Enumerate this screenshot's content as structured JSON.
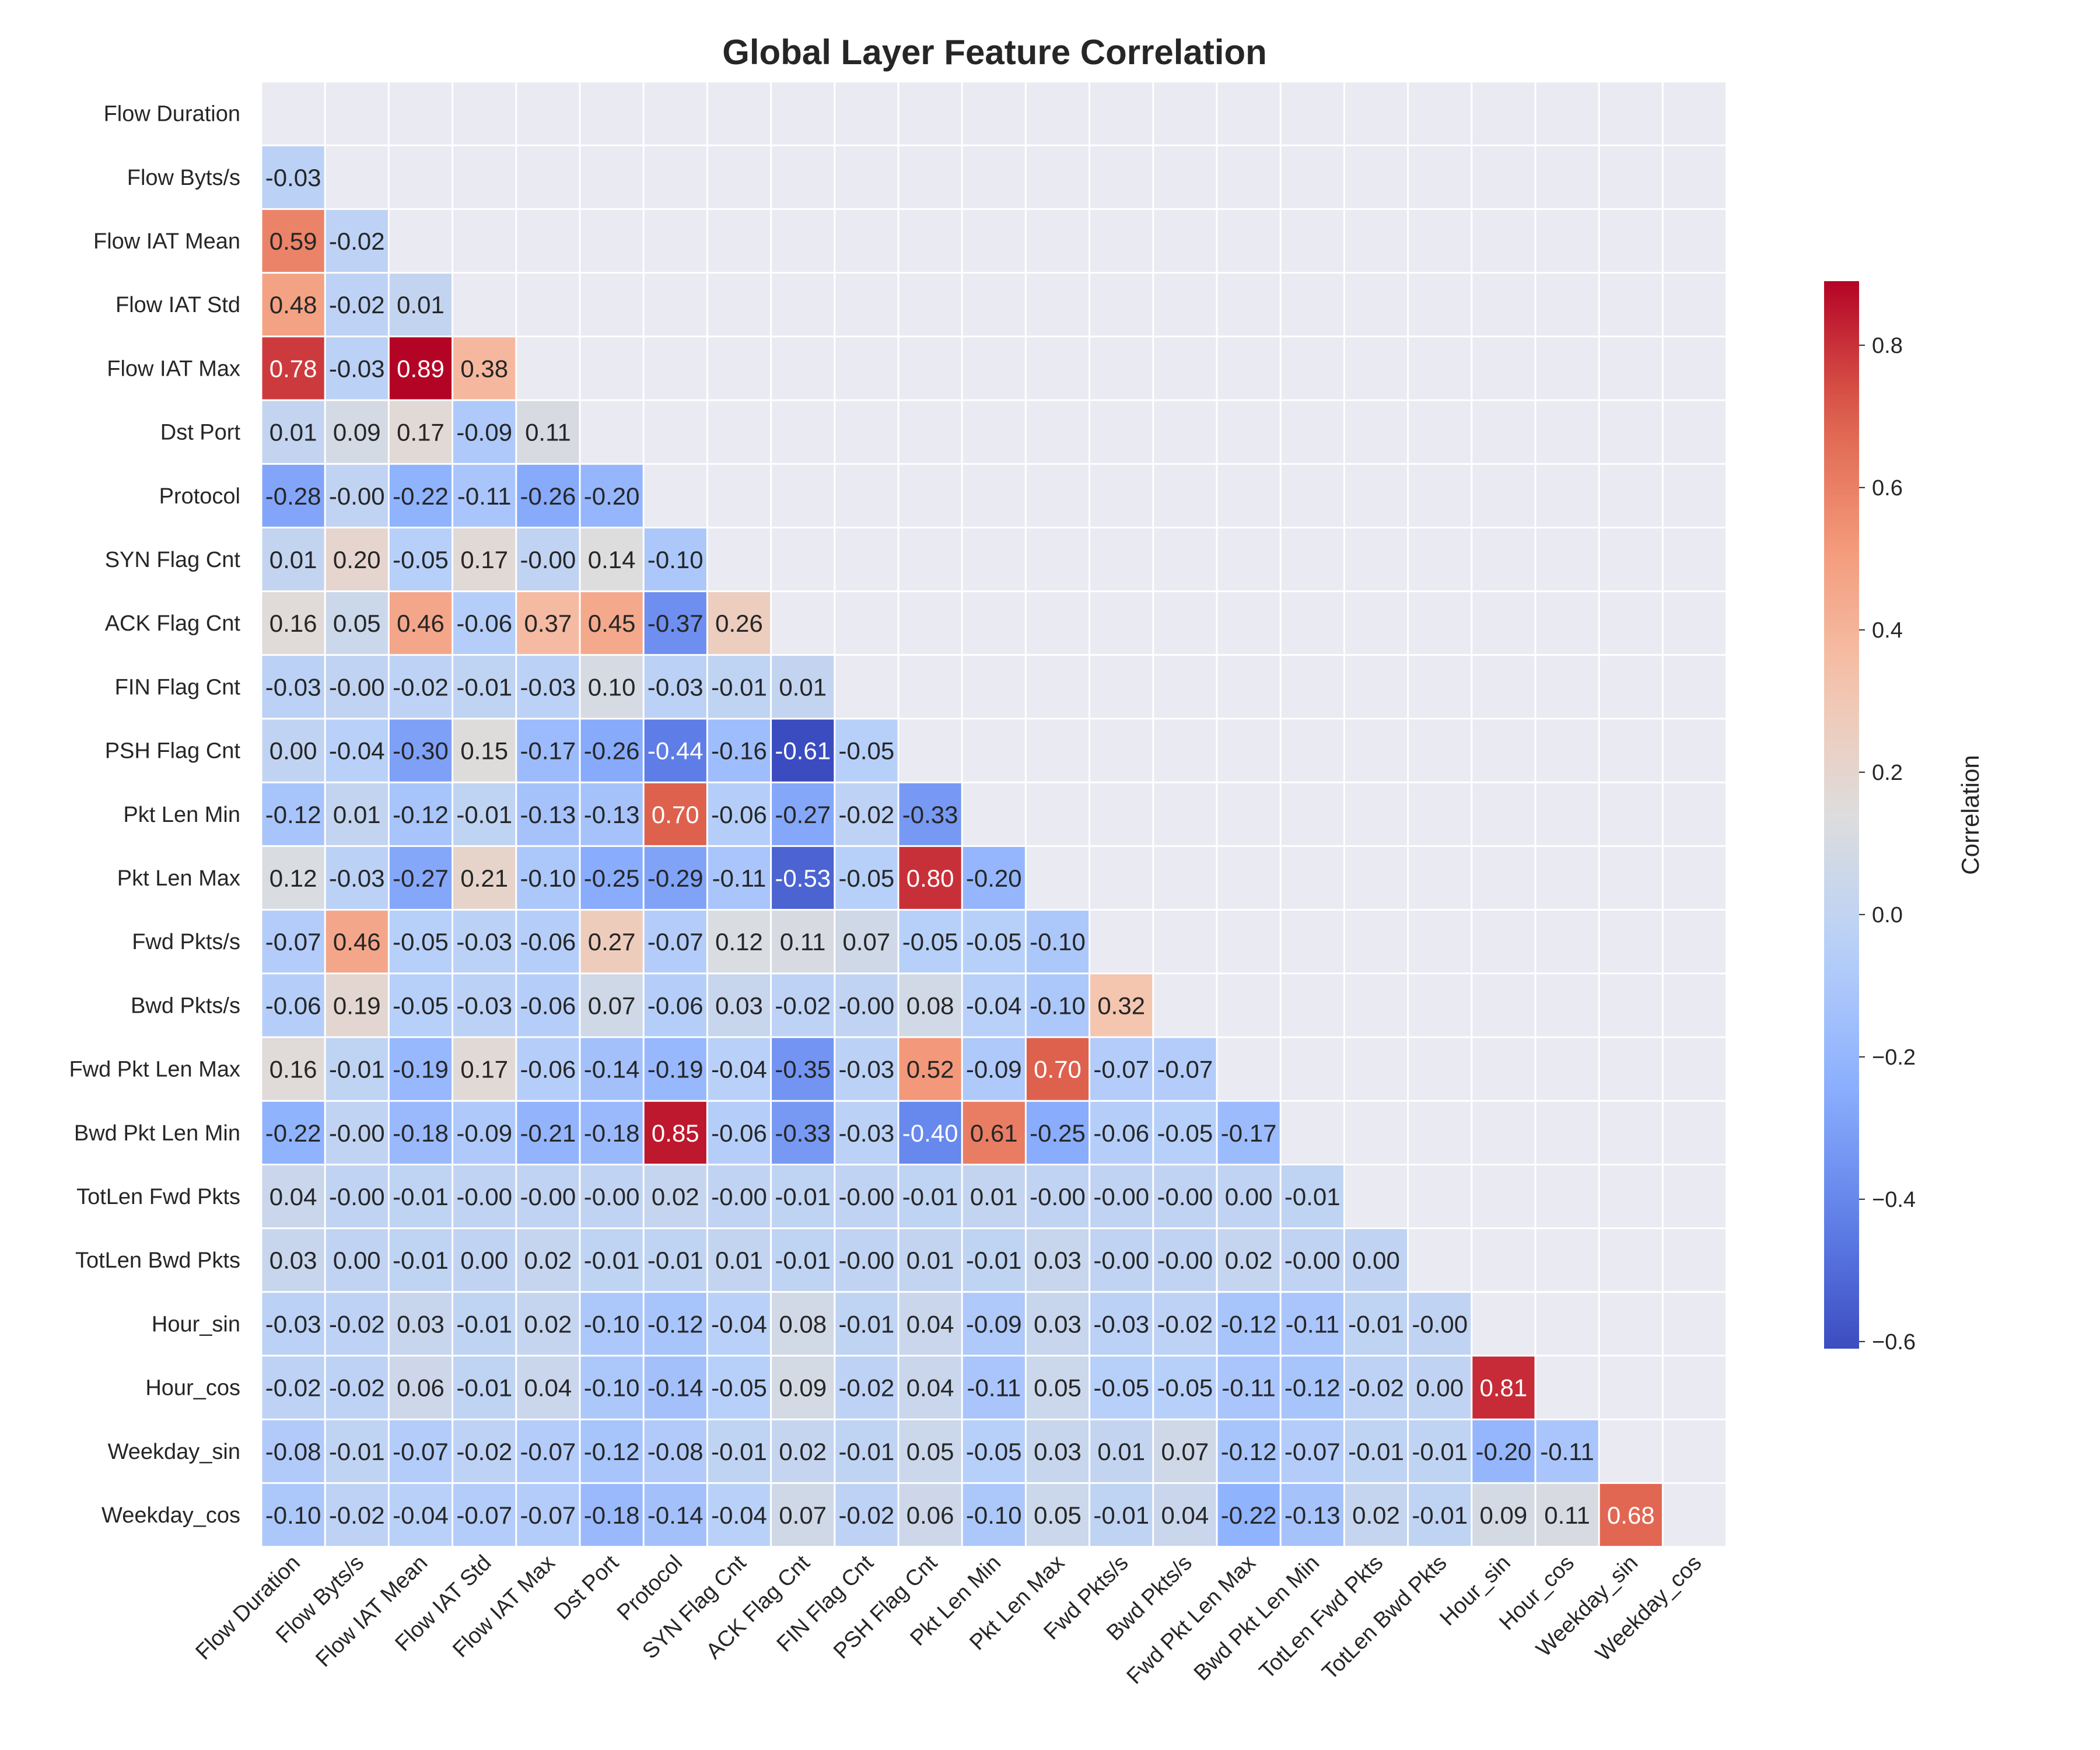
{
  "chart_data": {
    "type": "heatmap",
    "title": "Global Layer Feature Correlation",
    "labels": [
      "Flow Duration",
      "Flow Byts/s",
      "Flow IAT Mean",
      "Flow IAT Std",
      "Flow IAT Max",
      "Dst Port",
      "Protocol",
      "SYN Flag Cnt",
      "ACK Flag Cnt",
      "FIN Flag Cnt",
      "PSH Flag Cnt",
      "Pkt Len Min",
      "Pkt Len Max",
      "Fwd Pkts/s",
      "Bwd Pkts/s",
      "Fwd Pkt Len Max",
      "Bwd Pkt Len Min",
      "TotLen Fwd Pkts",
      "TotLen Bwd Pkts",
      "Hour_sin",
      "Hour_cos",
      "Weekday_sin",
      "Weekday_cos"
    ],
    "mask": "upper-triangle-including-diagonal",
    "matrix_lower": [
      [],
      [
        -0.03
      ],
      [
        0.59,
        -0.02
      ],
      [
        0.48,
        -0.02,
        0.01
      ],
      [
        0.78,
        -0.03,
        0.89,
        0.38
      ],
      [
        0.01,
        0.09,
        0.17,
        -0.09,
        0.11
      ],
      [
        -0.28,
        -0.0,
        -0.22,
        -0.11,
        -0.26,
        -0.2
      ],
      [
        0.01,
        0.2,
        -0.05,
        0.17,
        -0.0,
        0.14,
        -0.1
      ],
      [
        0.16,
        0.05,
        0.46,
        -0.06,
        0.37,
        0.45,
        -0.37,
        0.26
      ],
      [
        -0.03,
        -0.0,
        -0.02,
        -0.01,
        -0.03,
        0.1,
        -0.03,
        -0.01,
        0.01
      ],
      [
        0.0,
        -0.04,
        -0.3,
        0.15,
        -0.17,
        -0.26,
        -0.44,
        -0.16,
        -0.61,
        -0.05
      ],
      [
        -0.12,
        0.01,
        -0.12,
        -0.01,
        -0.13,
        -0.13,
        0.7,
        -0.06,
        -0.27,
        -0.02,
        -0.33
      ],
      [
        0.12,
        -0.03,
        -0.27,
        0.21,
        -0.1,
        -0.25,
        -0.29,
        -0.11,
        -0.53,
        -0.05,
        0.8,
        -0.2
      ],
      [
        -0.07,
        0.46,
        -0.05,
        -0.03,
        -0.06,
        0.27,
        -0.07,
        0.12,
        0.11,
        0.07,
        -0.05,
        -0.05,
        -0.1
      ],
      [
        -0.06,
        0.19,
        -0.05,
        -0.03,
        -0.06,
        0.07,
        -0.06,
        0.03,
        -0.02,
        -0.0,
        0.08,
        -0.04,
        -0.1,
        0.32
      ],
      [
        0.16,
        -0.01,
        -0.19,
        0.17,
        -0.06,
        -0.14,
        -0.19,
        -0.04,
        -0.35,
        -0.03,
        0.52,
        -0.09,
        0.7,
        -0.07,
        -0.07
      ],
      [
        -0.22,
        -0.0,
        -0.18,
        -0.09,
        -0.21,
        -0.18,
        0.85,
        -0.06,
        -0.33,
        -0.03,
        -0.4,
        0.61,
        -0.25,
        -0.06,
        -0.05,
        -0.17
      ],
      [
        0.04,
        -0.0,
        -0.01,
        -0.0,
        -0.0,
        -0.0,
        0.02,
        -0.0,
        -0.01,
        -0.0,
        -0.01,
        0.01,
        -0.0,
        -0.0,
        -0.0,
        0.0,
        -0.01
      ],
      [
        0.03,
        0.0,
        -0.01,
        0.0,
        0.02,
        -0.01,
        -0.01,
        0.01,
        -0.01,
        -0.0,
        0.01,
        -0.01,
        0.03,
        -0.0,
        -0.0,
        0.02,
        -0.0,
        0.0
      ],
      [
        -0.03,
        -0.02,
        0.03,
        -0.01,
        0.02,
        -0.1,
        -0.12,
        -0.04,
        0.08,
        -0.01,
        0.04,
        -0.09,
        0.03,
        -0.03,
        -0.02,
        -0.12,
        -0.11,
        -0.01,
        -0.0
      ],
      [
        -0.02,
        -0.02,
        0.06,
        -0.01,
        0.04,
        -0.1,
        -0.14,
        -0.05,
        0.09,
        -0.02,
        0.04,
        -0.11,
        0.05,
        -0.05,
        -0.05,
        -0.11,
        -0.12,
        -0.02,
        0.0,
        0.81
      ],
      [
        -0.08,
        -0.01,
        -0.07,
        -0.02,
        -0.07,
        -0.12,
        -0.08,
        -0.01,
        0.02,
        -0.01,
        0.05,
        -0.05,
        0.03,
        0.01,
        0.07,
        -0.12,
        -0.07,
        -0.01,
        -0.01,
        -0.2,
        -0.11
      ],
      [
        -0.1,
        -0.02,
        -0.04,
        -0.07,
        -0.07,
        -0.18,
        -0.14,
        -0.04,
        0.07,
        -0.02,
        0.06,
        -0.1,
        0.05,
        -0.01,
        0.04,
        -0.22,
        -0.13,
        0.02,
        -0.01,
        0.09,
        0.11,
        0.68
      ]
    ],
    "value_format": "0.00",
    "colormap": "coolwarm",
    "vmin": -0.61,
    "vmax": 0.89,
    "colorbar": {
      "label": "Correlation",
      "ticks": [
        -0.6,
        -0.4,
        -0.2,
        0.0,
        0.2,
        0.4,
        0.6,
        0.8
      ],
      "tick_labels": [
        "−0.6",
        "−0.4",
        "−0.2",
        "0.0",
        "0.2",
        "0.4",
        "0.6",
        "0.8"
      ]
    },
    "grid": true,
    "axes_background": "#eaeaf2"
  }
}
